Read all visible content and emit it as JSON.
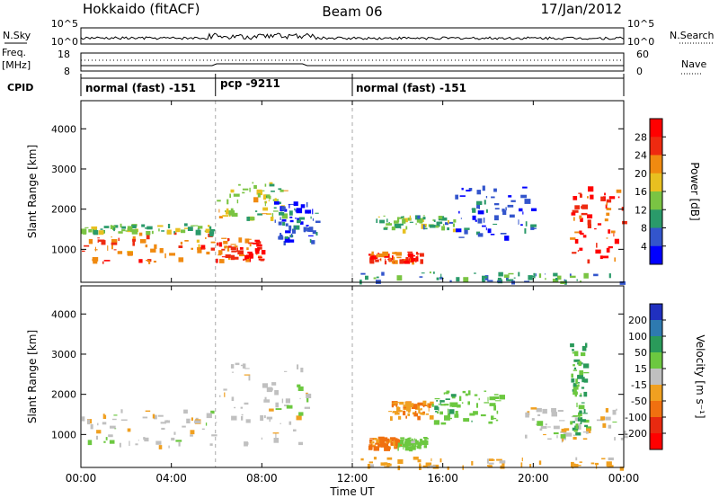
{
  "header": {
    "station": "Hokkaido (fitACF)",
    "beam": "Beam 06",
    "date": "17/Jan/2012"
  },
  "nsky_panel": {
    "left_label": "N.Sky",
    "right_label": "N.Search",
    "left_ticks": [
      "10^5",
      "10^0"
    ],
    "right_ticks": [
      "10^5",
      "10^0"
    ]
  },
  "freq_panel": {
    "left_label_1": "Freq.",
    "left_label_2": "[MHz]",
    "right_label": "Nave",
    "left_ticks": [
      "18",
      "8"
    ],
    "right_ticks": [
      "60",
      "0"
    ]
  },
  "cpid": {
    "label": "CPID",
    "segments": [
      {
        "start_hour": 0,
        "name": "normal (fast)",
        "id": "-151"
      },
      {
        "start_hour": 6,
        "name": "pcp",
        "id": "-9211"
      },
      {
        "start_hour": 12,
        "name": "normal (fast)",
        "id": "-151"
      }
    ]
  },
  "x_axis": {
    "label": "Time UT",
    "range_hours": [
      0,
      24
    ],
    "ticks": [
      "00:00",
      "04:00",
      "08:00",
      "12:00",
      "16:00",
      "20:00",
      "00:00"
    ]
  },
  "power_panel": {
    "ylabel": "Slant Range [km]",
    "ylim": [
      180,
      4700
    ],
    "yticks": [
      "1000",
      "2000",
      "3000",
      "4000"
    ],
    "colorbar_label": "Power [dB]",
    "colorbar_ticks": [
      "4",
      "8",
      "12",
      "16",
      "20",
      "24",
      "28"
    ],
    "colorbar_colors": [
      "#0000ff",
      "#3355cc",
      "#2a9a6a",
      "#7ac443",
      "#e8c020",
      "#f08a10",
      "#ee2a10",
      "#ff0000"
    ]
  },
  "velocity_panel": {
    "ylabel": "Slant Range [km]",
    "ylim": [
      180,
      4700
    ],
    "yticks": [
      "1000",
      "2000",
      "3000",
      "4000"
    ],
    "colorbar_label": "Velocity [m s⁻¹]",
    "colorbar_ticks": [
      "200",
      "100",
      "50",
      "15",
      "-15",
      "-50",
      "-100",
      "-200"
    ],
    "colorbar_colors": [
      "#2030c0",
      "#2e7ab0",
      "#2a9a5a",
      "#6cc840",
      "#c0c0c0",
      "#f0a020",
      "#f07010",
      "#e82a10",
      "#ff0000"
    ]
  },
  "chart_data": {
    "type": "heatmap",
    "x_unit": "hours UT",
    "y_unit": "km",
    "power_patches": [
      {
        "t0": 0.0,
        "t1": 5.8,
        "r0": 700,
        "r1": 1450,
        "level": 24
      },
      {
        "t0": 0.0,
        "t1": 5.8,
        "r0": 1450,
        "r1": 1650,
        "level": 14
      },
      {
        "t0": 5.9,
        "t1": 8.0,
        "r0": 750,
        "r1": 1300,
        "level": 26
      },
      {
        "t0": 6.0,
        "t1": 9.0,
        "r0": 1800,
        "r1": 2700,
        "level": 16
      },
      {
        "t0": 8.5,
        "t1": 10.5,
        "r0": 1200,
        "r1": 2200,
        "level": 6
      },
      {
        "t0": 12.7,
        "t1": 15.0,
        "r0": 700,
        "r1": 950,
        "level": 26
      },
      {
        "t0": 13.0,
        "t1": 16.5,
        "r0": 1500,
        "r1": 1850,
        "level": 12
      },
      {
        "t0": 16.5,
        "t1": 20.0,
        "r0": 1300,
        "r1": 2600,
        "level": 5
      },
      {
        "t0": 21.6,
        "t1": 24.0,
        "r0": 700,
        "r1": 2600,
        "level": 26
      },
      {
        "t0": 12.0,
        "t1": 24.0,
        "r0": 200,
        "r1": 450,
        "level": 10
      }
    ],
    "velocity_patches": [
      {
        "t0": 0.0,
        "t1": 5.8,
        "r0": 700,
        "r1": 1650,
        "vel": 0
      },
      {
        "t0": 5.9,
        "t1": 10.0,
        "r0": 800,
        "r1": 2800,
        "vel": 0
      },
      {
        "t0": 12.7,
        "t1": 14.0,
        "r0": 700,
        "r1": 950,
        "vel": -60
      },
      {
        "t0": 14.0,
        "t1": 15.2,
        "r0": 700,
        "r1": 950,
        "vel": 30
      },
      {
        "t0": 13.5,
        "t1": 15.5,
        "r0": 1450,
        "r1": 1850,
        "vel": -40
      },
      {
        "t0": 15.5,
        "t1": 18.5,
        "r0": 1300,
        "r1": 2100,
        "vel": 40
      },
      {
        "t0": 19.5,
        "t1": 24.0,
        "r0": 900,
        "r1": 1700,
        "vel": 0
      },
      {
        "t0": 21.6,
        "t1": 22.3,
        "r0": 1000,
        "r1": 3300,
        "vel": 50
      },
      {
        "t0": 12.0,
        "t1": 24.0,
        "r0": 200,
        "r1": 450,
        "vel": -30
      }
    ],
    "cpid_change_hours": [
      5.95,
      12.0
    ]
  }
}
